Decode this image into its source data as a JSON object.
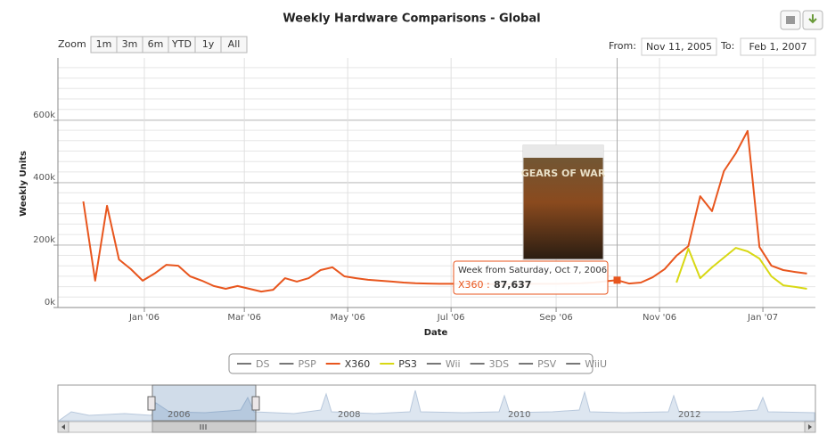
{
  "chart_data": {
    "type": "line",
    "title": "Weekly Hardware Comparisons - Global",
    "x_label": "Date",
    "y_label": "Weekly Units",
    "range_selector": {
      "zoom": "Zoom",
      "buttons": [
        "1m",
        "3m",
        "6m",
        "YTD",
        "1y",
        "All"
      ],
      "from_label": "From:",
      "from": "Nov 11, 2005",
      "to_label": "To:",
      "to": "Feb 1, 2007"
    },
    "xlim": [
      "2005-11-11",
      "2007-02-01"
    ],
    "xticks": [
      {
        "value": "2006-01-01",
        "label": "Jan '06"
      },
      {
        "value": "2006-03-01",
        "label": "Mar '06"
      },
      {
        "value": "2006-05-01",
        "label": "May '06"
      },
      {
        "value": "2006-07-01",
        "label": "Jul '06"
      },
      {
        "value": "2006-09-01",
        "label": "Sep '06"
      },
      {
        "value": "2006-11-01",
        "label": "Nov '06"
      },
      {
        "value": "2007-01-01",
        "label": "Jan '07"
      }
    ],
    "ylim": [
      0,
      800000
    ],
    "yticks": [
      {
        "value": 0,
        "label": "0k"
      },
      {
        "value": 200000,
        "label": "200k"
      },
      {
        "value": 400000,
        "label": "400k"
      },
      {
        "value": 600000,
        "label": "600k"
      }
    ],
    "grid": true,
    "x": [
      "2005-11-26",
      "2005-12-03",
      "2005-12-10",
      "2005-12-17",
      "2005-12-24",
      "2005-12-31",
      "2006-01-07",
      "2006-01-14",
      "2006-01-21",
      "2006-01-28",
      "2006-02-04",
      "2006-02-11",
      "2006-02-18",
      "2006-02-25",
      "2006-03-04",
      "2006-03-11",
      "2006-03-18",
      "2006-03-25",
      "2006-04-01",
      "2006-04-08",
      "2006-04-15",
      "2006-04-22",
      "2006-04-29",
      "2006-05-06",
      "2006-05-13",
      "2006-05-20",
      "2006-05-27",
      "2006-06-03",
      "2006-06-10",
      "2006-06-17",
      "2006-06-24",
      "2006-07-01",
      "2006-07-08",
      "2006-07-15",
      "2006-07-22",
      "2006-07-29",
      "2006-08-05",
      "2006-08-12",
      "2006-08-19",
      "2006-08-26",
      "2006-09-02",
      "2006-09-09",
      "2006-09-16",
      "2006-09-23",
      "2006-09-30",
      "2006-10-07",
      "2006-10-14",
      "2006-10-21",
      "2006-10-28",
      "2006-11-04",
      "2006-11-11",
      "2006-11-18",
      "2006-11-25",
      "2006-12-02",
      "2006-12-09",
      "2006-12-16",
      "2006-12-23",
      "2006-12-30",
      "2007-01-06",
      "2007-01-13",
      "2007-01-20",
      "2007-01-27"
    ],
    "series": [
      {
        "name": "DS",
        "color": "#cccccc",
        "visible": false
      },
      {
        "name": "PSP",
        "color": "#cccccc",
        "visible": false
      },
      {
        "name": "X360",
        "color": "#e8561e",
        "visible": true,
        "values": [
          340000,
          86000,
          326000,
          154000,
          123000,
          86000,
          109000,
          137000,
          134000,
          100000,
          86000,
          69000,
          60000,
          69000,
          60000,
          51000,
          57000,
          94000,
          83000,
          94000,
          120000,
          129000,
          100000,
          94000,
          89000,
          86000,
          83000,
          80000,
          78000,
          77000,
          76000,
          76000,
          76000,
          75000,
          75000,
          75000,
          75000,
          75000,
          76000,
          76000,
          76000,
          77000,
          78000,
          80000,
          84000,
          87637,
          77000,
          80000,
          97000,
          123000,
          166000,
          197000,
          357000,
          309000,
          437000,
          494000,
          566000,
          194000,
          134000,
          120000,
          114000,
          109000
        ]
      },
      {
        "name": "PS3",
        "color": "#d8d814",
        "visible": true,
        "values": [
          null,
          null,
          null,
          null,
          null,
          null,
          null,
          null,
          null,
          null,
          null,
          null,
          null,
          null,
          null,
          null,
          null,
          null,
          null,
          null,
          null,
          null,
          null,
          null,
          null,
          null,
          null,
          null,
          null,
          null,
          null,
          null,
          null,
          null,
          null,
          null,
          null,
          null,
          null,
          null,
          null,
          null,
          null,
          null,
          null,
          null,
          null,
          null,
          null,
          null,
          80000,
          189000,
          94000,
          129000,
          160000,
          191000,
          180000,
          157000,
          100000,
          71000,
          66000,
          60000
        ]
      },
      {
        "name": "Wii",
        "color": "#cccccc",
        "visible": false
      },
      {
        "name": "3DS",
        "color": "#cccccc",
        "visible": false
      },
      {
        "name": "PSV",
        "color": "#cccccc",
        "visible": false
      },
      {
        "name": "WiiU",
        "color": "#cccccc",
        "visible": false
      }
    ],
    "tooltip": {
      "header": "Week from Saturday, Oct 7, 2006",
      "series_label": "X360 :",
      "value_label": "87,637"
    },
    "image_title": "GEARS OF WAR",
    "navigator": {
      "labels": [
        "2006",
        "2008",
        "2010",
        "2012"
      ]
    }
  }
}
